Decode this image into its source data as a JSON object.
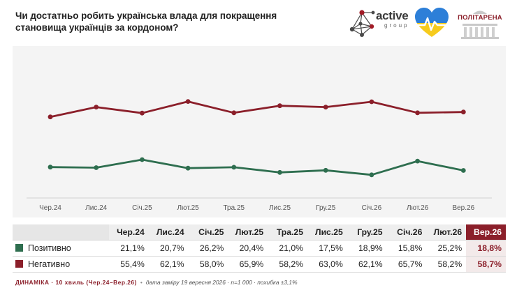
{
  "header": {
    "title": "Чи достатньо робить українська влада для покращення становища українців за кордоном?",
    "logo_active": "active",
    "logo_active_sub": "group",
    "logo_politarena": "ПОЛІТАРЕНА"
  },
  "colors": {
    "positive": "#2e6e4f",
    "negative": "#8b1f2a"
  },
  "icons": [
    "active-group-network-logo",
    "ukraine-heart-logo",
    "parliament-building-logo"
  ],
  "chart_data": {
    "type": "line",
    "categories": [
      "Чер.24",
      "Лис.24",
      "Січ.25",
      "Лют.25",
      "Тра.25",
      "Лис.25",
      "Гру.25",
      "Січ.26",
      "Лют.26",
      "Вер.26"
    ],
    "series": [
      {
        "name": "Позитивно",
        "values": [
          21.1,
          20.7,
          26.2,
          20.4,
          21.0,
          17.5,
          18.9,
          15.8,
          25.2,
          18.8
        ]
      },
      {
        "name": "Негативно",
        "values": [
          55.4,
          62.1,
          58.0,
          65.9,
          58.2,
          63.0,
          62.1,
          65.7,
          58.2,
          58.7
        ]
      }
    ],
    "ylim": [
      0,
      100
    ],
    "grid": false,
    "legend": "table-below"
  },
  "table": {
    "headers": [
      "Чер.24",
      "Лис.24",
      "Січ.25",
      "Лют.25",
      "Тра.25",
      "Лис.25",
      "Гру.25",
      "Січ.26",
      "Лют.26",
      "Вер.26"
    ],
    "rows": [
      {
        "label": "Позитивно",
        "values": [
          "21,1%",
          "20,7%",
          "26,2%",
          "20,4%",
          "21,0%",
          "17,5%",
          "18,9%",
          "15,8%",
          "25,2%",
          "18,8%"
        ]
      },
      {
        "label": "Негативно",
        "values": [
          "55,4%",
          "62,1%",
          "58,0%",
          "65,9%",
          "58,2%",
          "63,0%",
          "62,1%",
          "65,7%",
          "58,2%",
          "58,7%"
        ]
      }
    ]
  },
  "footer": {
    "dynamics": "ДИНАМІКА · 10 хвиль (Чер.24–Вер.26)",
    "separator": "•",
    "meta": "дата заміру 19 вересня 2026 · n=1 000 · похибка ±3,1%"
  }
}
